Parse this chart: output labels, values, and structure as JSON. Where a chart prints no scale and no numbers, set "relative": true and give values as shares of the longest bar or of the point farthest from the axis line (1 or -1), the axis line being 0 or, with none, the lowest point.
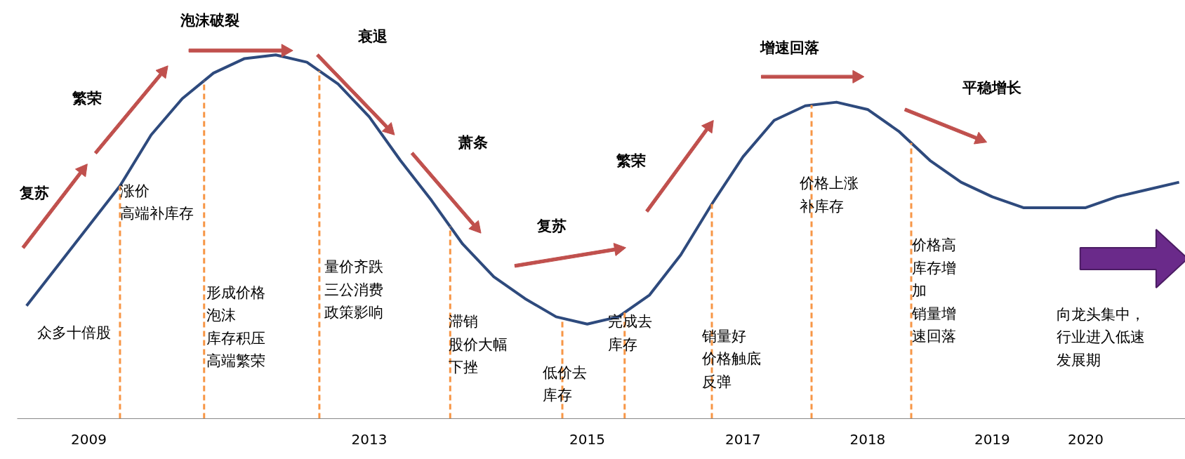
{
  "chart_data": {
    "type": "line",
    "relative": true,
    "tick_labels": "x",
    "line_style": "solid",
    "categories": [
      null,
      null,
      "2009",
      null,
      null,
      null,
      null,
      null,
      null,
      null,
      null,
      "2013",
      null,
      null,
      null,
      null,
      null,
      null,
      "2015",
      null,
      null,
      null,
      null,
      "2017",
      null,
      null,
      null,
      "2018",
      null,
      null,
      null,
      "2019",
      null,
      null,
      "2020",
      null,
      null,
      null
    ],
    "series": [
      {
        "color": "#2e4a7d",
        "values": [
          0.31,
          0.42,
          0.53,
          0.64,
          0.78,
          0.88,
          0.95,
          0.99,
          1.0,
          0.98,
          0.92,
          0.83,
          0.71,
          0.6,
          0.48,
          0.39,
          0.33,
          0.28,
          0.26,
          0.28,
          0.34,
          0.45,
          0.59,
          0.72,
          0.82,
          0.86,
          0.87,
          0.85,
          0.79,
          0.71,
          0.65,
          0.61,
          0.58,
          0.58,
          0.58,
          0.61,
          0.63,
          0.65
        ]
      }
    ],
    "annotations": [
      "复苏",
      "繁荣",
      "泡沫破裂",
      "衰退",
      "萧条",
      "复苏",
      "繁荣",
      "增速回落",
      "平稳增长",
      "涨价高端补库存",
      "众多十倍股",
      "形成价格泡沫库存积压高端繁荣",
      "量价齐跌三公消费政策影响",
      "滞销股价大幅下挫",
      "低价去库存",
      "完成去库存",
      "销量好价格触底反弹",
      "价格上涨补库存",
      "价格高库存增加销量增速回落",
      "向龙头集中，行业进入低速发展期"
    ]
  }
}
